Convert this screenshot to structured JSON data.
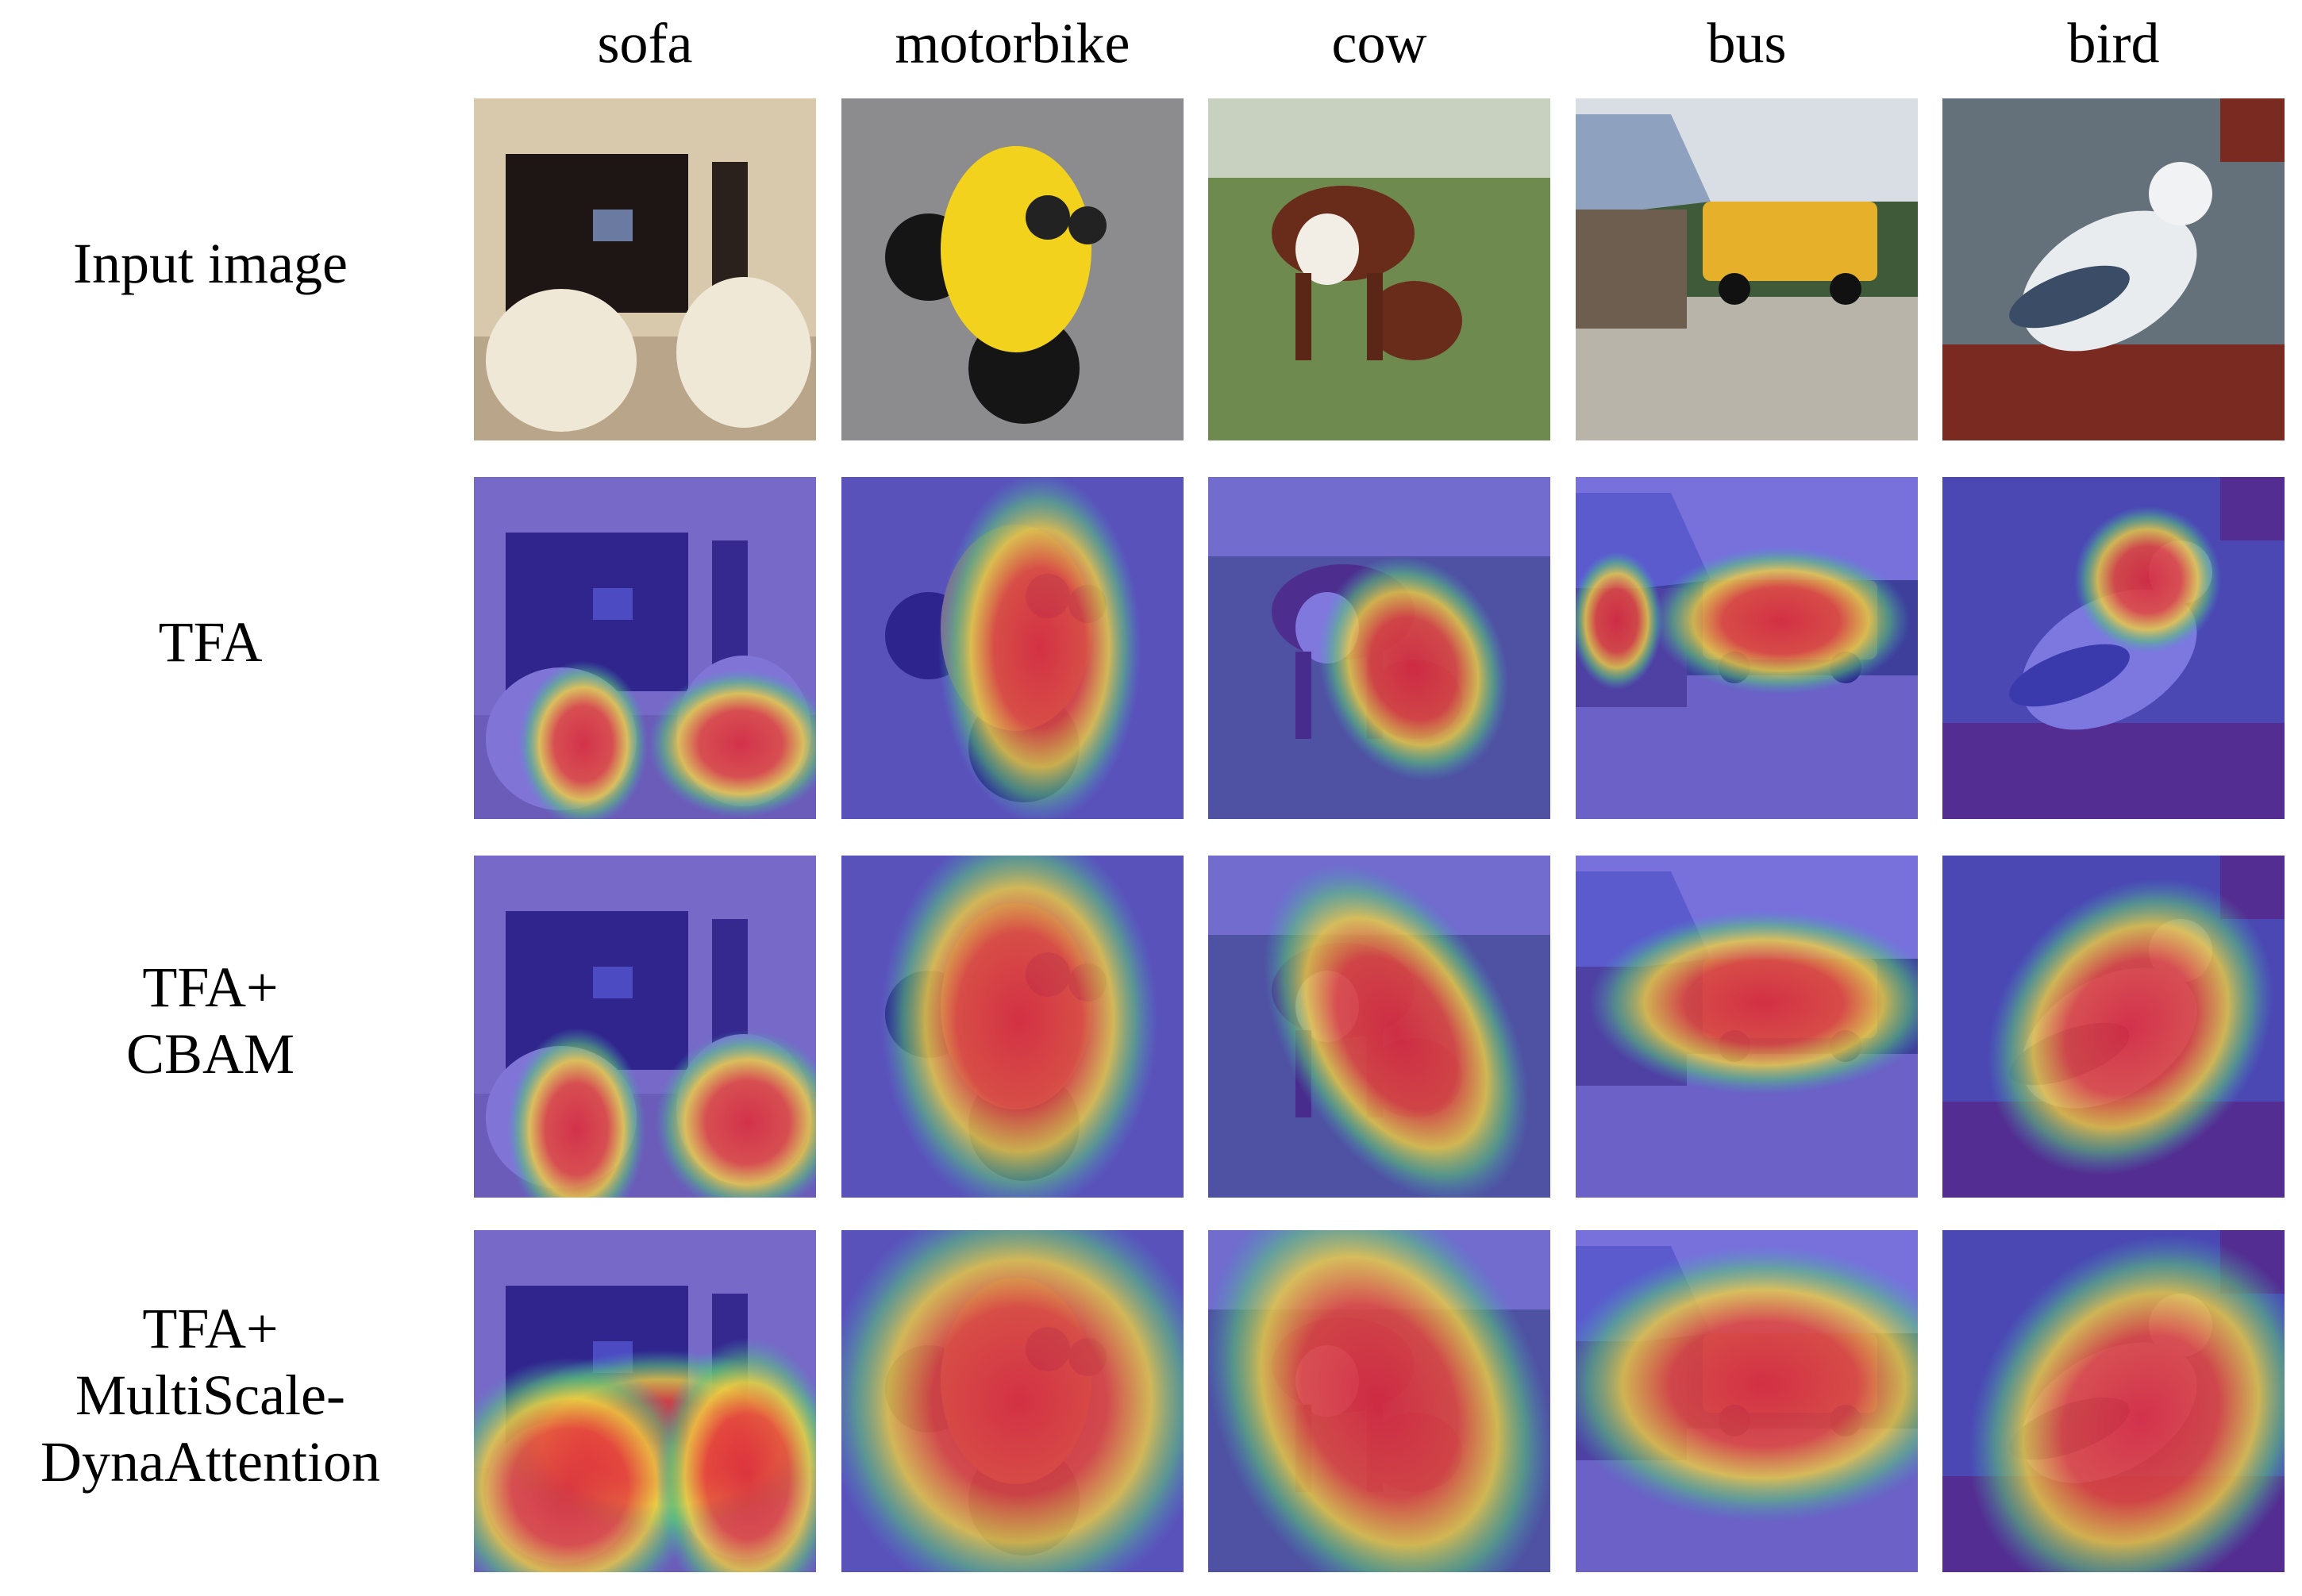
{
  "columns": [
    "sofa",
    "motorbike",
    "cow",
    "bus",
    "bird"
  ],
  "rows": [
    {
      "label": [
        "Input image"
      ]
    },
    {
      "label": [
        "TFA"
      ]
    },
    {
      "label": [
        "TFA+",
        "CBAM"
      ]
    },
    {
      "label": [
        "TFA+",
        "MultiScale-",
        "DynaAttention"
      ]
    }
  ]
}
